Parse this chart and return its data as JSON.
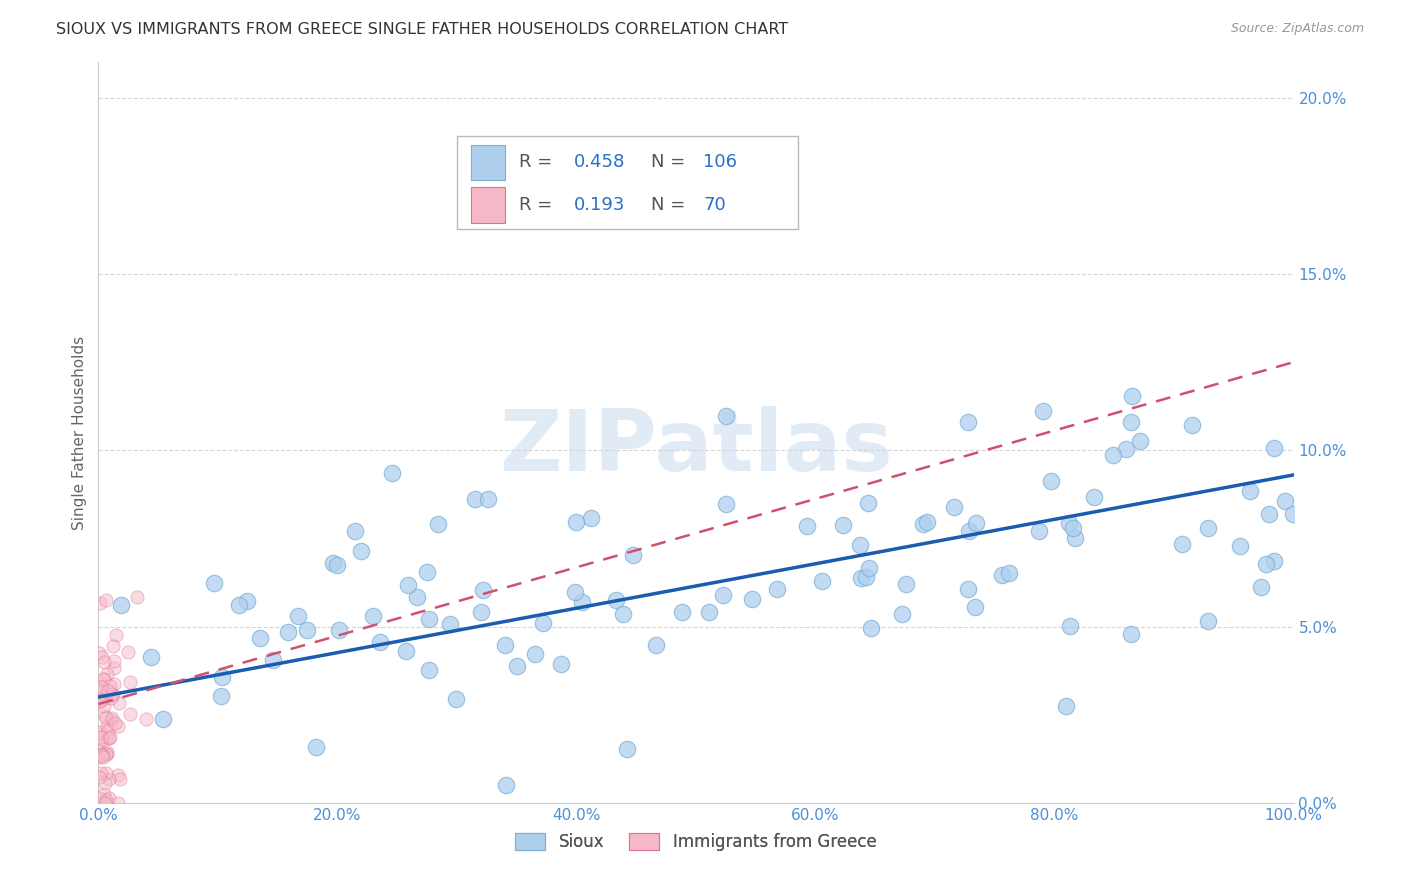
{
  "title": "SIOUX VS IMMIGRANTS FROM GREECE SINGLE FATHER HOUSEHOLDS CORRELATION CHART",
  "source": "Source: ZipAtlas.com",
  "ylabel_label": "Single Father Households",
  "legend_labels": [
    "Sioux",
    "Immigrants from Greece"
  ],
  "watermark": "ZIPatlas",
  "sioux_color": "#aecfee",
  "sioux_edge": "#7aafd4",
  "greece_color": "#f5b8c8",
  "greece_edge": "#e07090",
  "sioux_line_color": "#1a5cb0",
  "greece_line_color": "#d05070",
  "background_color": "#ffffff",
  "grid_color": "#cccccc",
  "sioux_R": 0.458,
  "sioux_N": 106,
  "greece_R": 0.193,
  "greece_N": 70,
  "xlim": [
    0.0,
    1.0
  ],
  "ylim": [
    0.0,
    0.21
  ],
  "x_ticks": [
    0.0,
    0.2,
    0.4,
    0.6,
    0.8,
    1.0
  ],
  "x_labels": [
    "0.0%",
    "20.0%",
    "40.0%",
    "60.0%",
    "80.0%",
    "100.0%"
  ],
  "y_ticks": [
    0.0,
    0.05,
    0.1,
    0.15,
    0.2
  ],
  "y_labels": [
    "0.0%",
    "5.0%",
    "10.0%",
    "15.0%",
    "20.0%"
  ],
  "tick_color": "#4a90d9",
  "sioux_line_y0": 0.03,
  "sioux_line_y1": 0.093,
  "greece_line_y0": 0.028,
  "greece_line_y1": 0.125
}
